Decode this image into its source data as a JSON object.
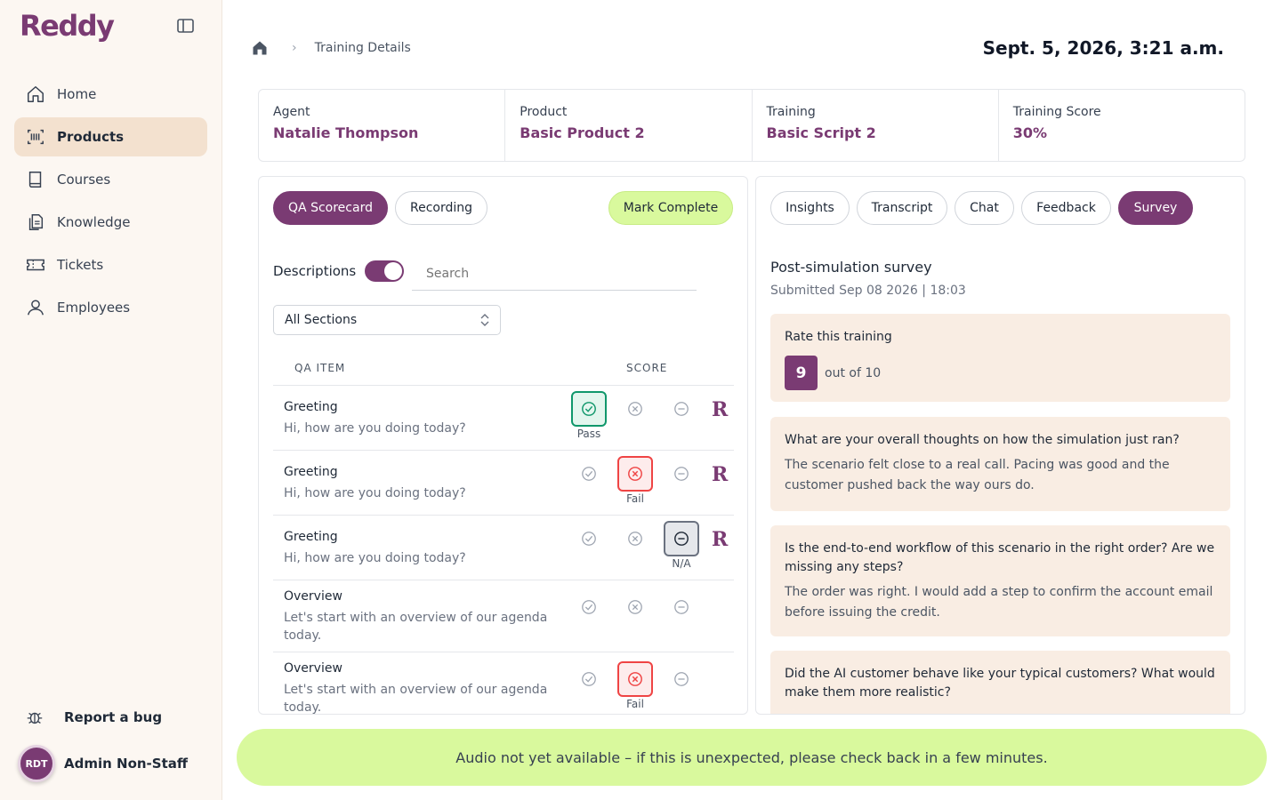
{
  "app": {
    "logo": "Reddy"
  },
  "sidebar": {
    "items": [
      {
        "label": "Home",
        "icon": "home-icon"
      },
      {
        "label": "Products",
        "icon": "barcode-icon",
        "active": true
      },
      {
        "label": "Courses",
        "icon": "book-icon"
      },
      {
        "label": "Knowledge",
        "icon": "documents-icon"
      },
      {
        "label": "Tickets",
        "icon": "ticket-icon"
      },
      {
        "label": "Employees",
        "icon": "person-icon"
      }
    ],
    "report_bug": "Report a bug",
    "user": {
      "initials": "RDT",
      "name": "Admin Non-Staff"
    }
  },
  "header": {
    "breadcrumb_current": "Training Details",
    "datetime": "Sept. 5, 2026, 3:21 a.m."
  },
  "summary": {
    "agent_label": "Agent",
    "agent_value": "Natalie Thompson",
    "product_label": "Product",
    "product_value": "Basic Product 2",
    "training_label": "Training",
    "training_value": "Basic Script 2",
    "score_label": "Training Score",
    "score_value": "30%"
  },
  "left": {
    "tabs": {
      "qa": "QA Scorecard",
      "recording": "Recording"
    },
    "mark_complete": "Mark Complete",
    "descriptions_label": "Descriptions",
    "descriptions_on": true,
    "search_placeholder": "Search",
    "section_select": "All Sections",
    "col_item": "QA ITEM",
    "col_score": "SCORE",
    "rows": [
      {
        "title": "Greeting",
        "desc": "Hi, how are you doing today?",
        "selected": "pass",
        "selected_label": "Pass",
        "review": "R"
      },
      {
        "title": "Greeting",
        "desc": "Hi, how are you doing today?",
        "selected": "fail",
        "selected_label": "Fail",
        "review": "R"
      },
      {
        "title": "Greeting",
        "desc": "Hi, how are you doing today?",
        "selected": "na",
        "selected_label": "N/A",
        "review": "R"
      },
      {
        "title": "Overview",
        "desc": "Let's start with an overview of our agenda today.",
        "selected": "none",
        "selected_label": ""
      },
      {
        "title": "Overview",
        "desc": "Let's start with an overview of our agenda today.",
        "selected": "fail",
        "selected_label": "Fail"
      }
    ]
  },
  "right": {
    "tabs": {
      "insights": "Insights",
      "transcript": "Transcript",
      "chat": "Chat",
      "feedback": "Feedback",
      "survey": "Survey"
    },
    "survey_title": "Post-simulation survey",
    "survey_submitted": "Submitted Sep 08 2026 | 18:03",
    "rate_label": "Rate this training",
    "rate_value": "9",
    "rate_out_of": "out of 10",
    "q1": "What are your overall thoughts on how the simulation just ran?",
    "a1": "The scenario felt close to a real call. Pacing was good and the customer pushed back the way ours do.",
    "q2": "Is the end-to-end workflow of this scenario in the right order? Are we missing any steps?",
    "a2": "The order was right. I would add a step to confirm the account email before issuing the credit.",
    "q3": "Did the AI customer behave like your typical customers? What would make them more realistic?"
  },
  "banner": "Audio not yet available – if this is unexpected, please check back in a few minutes.",
  "colors": {
    "brand": "#7a3b73",
    "lime": "#d9f99d",
    "cream": "#fcf7f2",
    "pass": "#10976b",
    "fail": "#ef4444"
  }
}
